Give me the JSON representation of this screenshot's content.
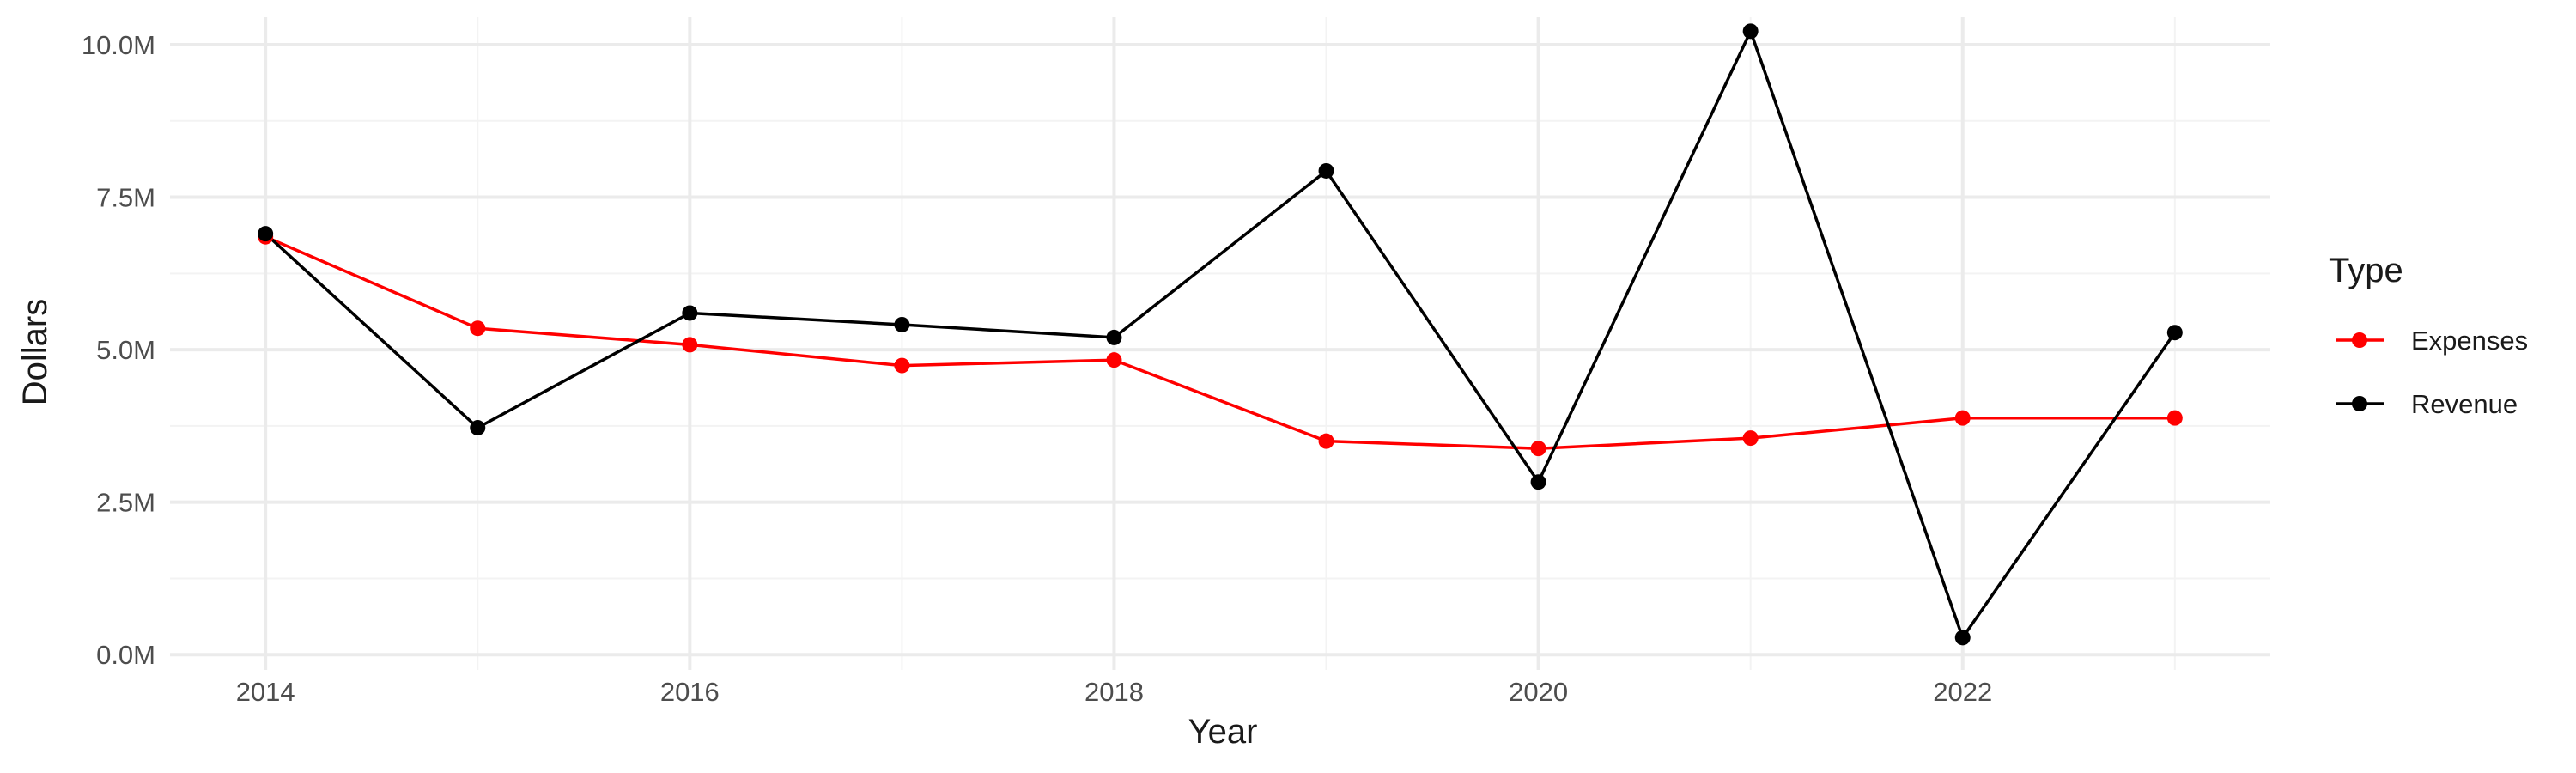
{
  "chart_data": {
    "type": "line",
    "x": [
      2014,
      2015,
      2016,
      2017,
      2018,
      2019,
      2020,
      2021,
      2022,
      2023
    ],
    "series": [
      {
        "name": "Expenses",
        "color": "#ff0000",
        "values": [
          6.85,
          5.35,
          5.08,
          4.74,
          4.83,
          3.5,
          3.38,
          3.55,
          3.88,
          3.88
        ]
      },
      {
        "name": "Revenue",
        "color": "#000000",
        "values": [
          6.9,
          3.72,
          5.6,
          5.41,
          5.2,
          7.93,
          2.83,
          10.22,
          0.28,
          5.28
        ]
      }
    ],
    "xlabel": "Year",
    "ylabel": "Dollars",
    "xlim": [
      2013.55,
      2023.45
    ],
    "ylim": [
      -0.25,
      10.45
    ],
    "x_ticks": [
      2014,
      2016,
      2018,
      2020,
      2022
    ],
    "x_tick_labels": [
      "2014",
      "2016",
      "2018",
      "2020",
      "2022"
    ],
    "x_minor_ticks": [
      2015,
      2017,
      2019,
      2021,
      2023
    ],
    "y_ticks": [
      0,
      2.5,
      5,
      7.5,
      10
    ],
    "y_tick_labels": [
      "0.0M",
      "2.5M",
      "5.0M",
      "7.5M",
      "10.0M"
    ],
    "y_minor_ticks": [
      1.25,
      3.75,
      6.25,
      8.75
    ],
    "grid": true,
    "legend_title": "Type",
    "legend_position": "right",
    "grid_major_color": "#ebebeb",
    "grid_minor_color": "#f3f3f3"
  }
}
